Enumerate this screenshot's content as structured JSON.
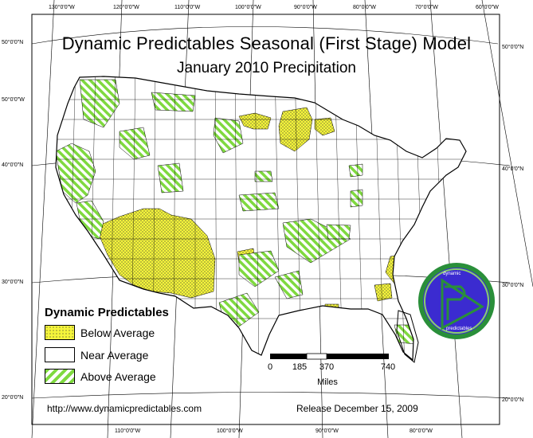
{
  "title": "Dynamic Predictables Seasonal (First Stage) Model",
  "subtitle": "January 2010 Precipitation",
  "top_ticks": [
    "130°0'0\"W",
    "120°0'0\"W",
    "110°0'0\"W",
    "100°0'0\"W",
    "90°0'0\"W",
    "80°0'0\"W",
    "70°0'0\"W",
    "60°0'0\"W"
  ],
  "bottom_ticks": [
    "110°0'0\"W",
    "100°0'0\"W",
    "90°0'0\"W",
    "80°0'0\"W"
  ],
  "left_ticks": [
    "50°0'0\"N",
    "50°0'0\"W",
    "40°0'0\"N",
    "30°0'0\"N",
    "20°0'0\"N"
  ],
  "right_ticks": [
    "50°0'0\"N",
    "40°0'0\"N",
    "30°0'0\"N",
    "20°0'0\"N"
  ],
  "legend": {
    "title": "Dynamic Predictables",
    "items": [
      {
        "label": "Below Average",
        "fill": "yellow-dots"
      },
      {
        "label": "Near Average",
        "fill": "white"
      },
      {
        "label": "Above Average",
        "fill": "green-stripes"
      }
    ]
  },
  "scale_bar": {
    "ticks": [
      "0",
      "185",
      "370",
      "740"
    ],
    "unit": "Miles"
  },
  "logo": {
    "top_text": "dynamic",
    "bottom_text": "predictables"
  },
  "footer": {
    "url": "http://www.dynamicpredictables.com",
    "release": "Release December 15, 2009"
  },
  "colors": {
    "below": "#f5f53b",
    "above_stripe": "#7fd93f",
    "logo_ring": "#2a8f3a",
    "logo_fill": "#3b2bd0",
    "border": "#000000"
  }
}
